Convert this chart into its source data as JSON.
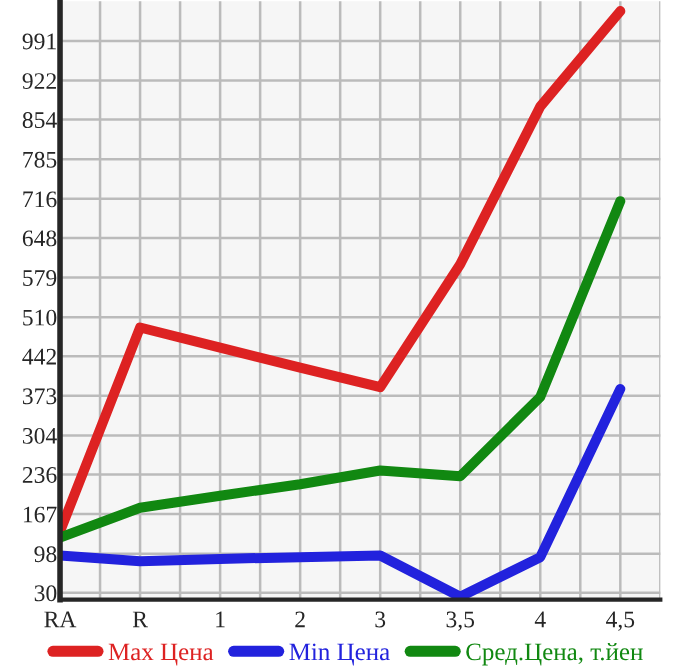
{
  "chart_data": {
    "type": "line",
    "categories": [
      "RA",
      "R",
      "1",
      "2",
      "3",
      "3,5",
      "4",
      "4,5"
    ],
    "series": [
      {
        "name": "Max Цена",
        "color": "#dd2222",
        "values": [
          137,
          492,
          457,
          422,
          388,
          602,
          877,
          1043
        ]
      },
      {
        "name": "Min Цена",
        "color": "#2222dd",
        "values": [
          95,
          85,
          89,
          92,
          95,
          23,
          92,
          385
        ]
      },
      {
        "name": "Сред.Цена, т.йен",
        "color": "#118811",
        "values": [
          126,
          178,
          199,
          219,
          243,
          233,
          371,
          712
        ]
      }
    ],
    "ylim": [
      18,
      1060
    ],
    "yticks": [
      30,
      98,
      167,
      236,
      304,
      373,
      442,
      510,
      579,
      648,
      716,
      785,
      854,
      922,
      991
    ],
    "grid": true,
    "legend": "bottom",
    "marker": "none",
    "line_style": "solid"
  }
}
